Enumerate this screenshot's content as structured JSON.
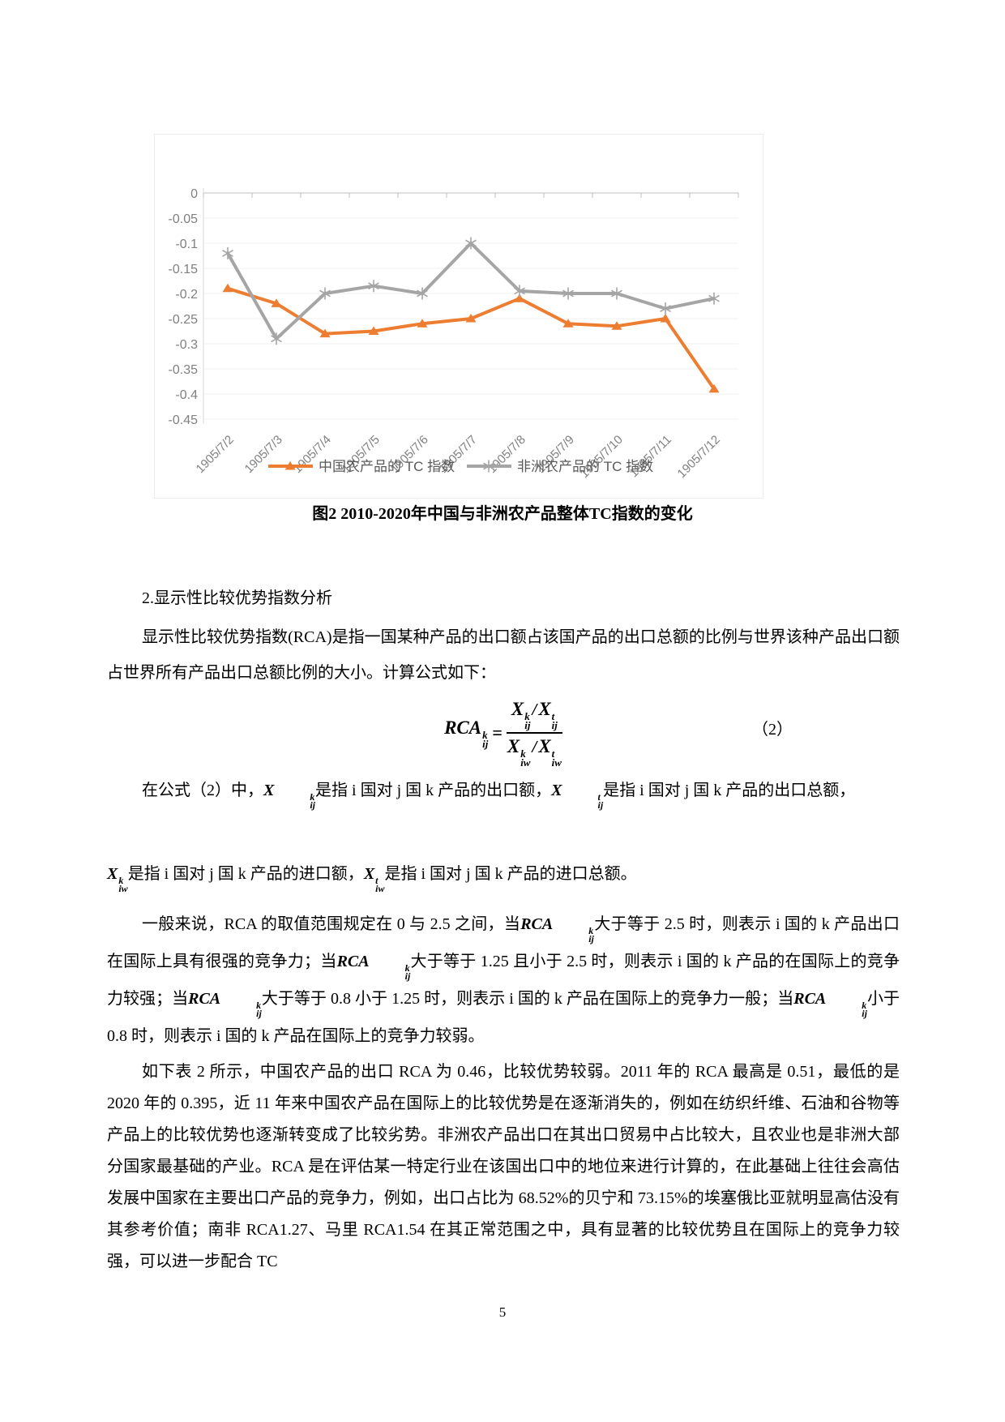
{
  "chart_data": {
    "type": "line",
    "title": "",
    "xlabel": "",
    "ylabel": "",
    "categories": [
      "1905/7/2",
      "1905/7/3",
      "1905/7/4",
      "1905/7/5",
      "1905/7/6",
      "1905/7/7",
      "1905/7/8",
      "1905/7/9",
      "1905/7/10",
      "1905/7/11",
      "1905/7/12"
    ],
    "series": [
      {
        "name": "中国农产品的 TC 指数",
        "marker": "triangle",
        "color": "#ED7D31",
        "values": [
          -0.19,
          -0.22,
          -0.28,
          -0.275,
          -0.26,
          -0.25,
          -0.21,
          -0.26,
          -0.265,
          -0.25,
          -0.39
        ]
      },
      {
        "name": "非洲农产品的 TC 指数",
        "marker": "asterisk",
        "color": "#A5A5A5",
        "values": [
          -0.12,
          -0.29,
          -0.2,
          -0.185,
          -0.2,
          -0.1,
          -0.195,
          -0.2,
          -0.2,
          -0.23,
          -0.21
        ]
      }
    ],
    "yticks": [
      0,
      -0.05,
      -0.1,
      -0.15,
      -0.2,
      -0.25,
      -0.3,
      -0.35,
      -0.4,
      -0.45
    ],
    "ylim": [
      -0.45,
      0
    ],
    "grid": true,
    "legend_position": "bottom",
    "colors": {
      "axis_text": "#808080",
      "legend_text": "#595959",
      "grid": "#f2f2f2",
      "axis_line": "#bfbfbf",
      "plot_border": "#d9d9d9"
    }
  },
  "figure_caption": "图2  2010-2020年中国与非洲农产品整体TC指数的变化",
  "section_heading": "2.显示性比较优势指数分析",
  "para1": "显示性比较优势指数(RCA)是指一国某种产品的出口额占该国产品的出口总额的比例与世界该种产品出口额占世界所有产品出口总额比例的大小。计算公式如下：",
  "equation": {
    "lhs": "RCA",
    "lhs_sup": "k",
    "lhs_sub": "ij",
    "eq": "=",
    "n1": "X",
    "n1_sup": "k",
    "n1_sub": "ij",
    "n_slash": "/",
    "n2": "X",
    "n2_sup": "t",
    "n2_sub": "ij",
    "d1": "X",
    "d1_sup": "k",
    "d1_sub": "iw",
    "d_slash": "/",
    "d2": "X",
    "d2_sup": "t",
    "d2_sub": "iw",
    "number": "（2）"
  },
  "para2a_segments": [
    {
      "t": "在公式（2）中，"
    },
    {
      "v": "X",
      "sup": "k",
      "sub": "ij"
    },
    {
      "t": "是指 i 国对 j 国 k 产品的出口额，"
    },
    {
      "v": "X",
      "sup": "t",
      "sub": "ij"
    },
    {
      "t": "是指 i 国对 j 国 k 产品的出口总额，"
    }
  ],
  "para2b_segments": [
    {
      "v": "X",
      "sup": "k",
      "sub": "iw"
    },
    {
      "t": "是指 i 国对 j 国 k 产品的进口额，"
    },
    {
      "v": "X",
      "sup": "t",
      "sub": "iw"
    },
    {
      "t": "是指 i 国对 j 国 k 产品的进口总额。"
    }
  ],
  "para3_segments": [
    {
      "t": "一般来说，RCA 的取值范围规定在 0 与 2.5 之间，当"
    },
    {
      "v": "RCA",
      "sup": "k",
      "sub": "ij"
    },
    {
      "t": "大于等于 2.5 时，则表示 i 国的 k 产品出口在国际上具有很强的竞争力；当"
    },
    {
      "v": "RCA",
      "sup": "k",
      "sub": "ij"
    },
    {
      "t": "大于等于 1.25 且小于 2.5 时，则表示 i 国的 k 产品的在国际上的竞争力较强；当"
    },
    {
      "v": "RCA",
      "sup": "k",
      "sub": "ij"
    },
    {
      "t": "大于等于 0.8 小于 1.25 时，则表示 i 国的 k 产品在国际上的竞争力一般；当"
    },
    {
      "v": "RCA",
      "sup": "k",
      "sub": "ij"
    },
    {
      "t": "小于 0.8 时，则表示 i 国的 k 产品在国际上的竞争力较弱。"
    }
  ],
  "para4": "如下表 2 所示，中国农产品的出口 RCA 为 0.46，比较优势较弱。2011 年的 RCA 最高是 0.51，最低的是 2020 年的 0.395，近 11 年来中国农产品在国际上的比较优势是在逐渐消失的，例如在纺织纤维、石油和谷物等产品上的比较优势也逐渐转变成了比较劣势。非洲农产品出口在其出口贸易中占比较大，且农业也是非洲大部分国家最基础的产业。RCA 是在评估某一特定行业在该国出口中的地位来进行计算的，在此基础上往往会高估发展中国家在主要出口产品的竞争力，例如，出口占比为 68.52%的贝宁和 73.15%的埃塞俄比亚就明显高估没有其参考价值；南非 RCA1.27、马里 RCA1.54 在其正常范围之中，具有显著的比较优势且在国际上的竞争力较强，可以进一步配合 TC",
  "page_number": "5"
}
